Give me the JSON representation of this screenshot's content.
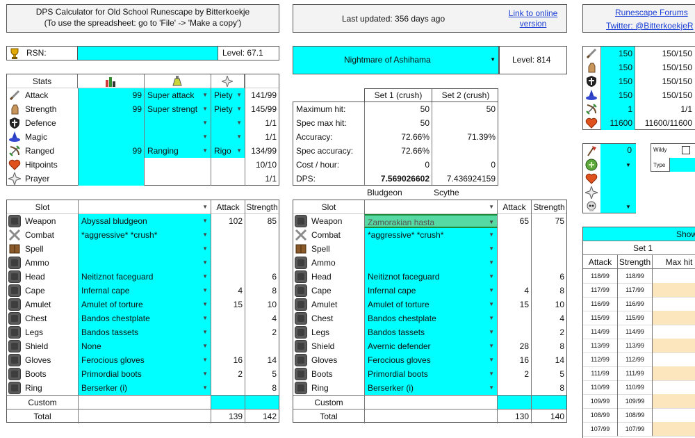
{
  "header": {
    "title_line1": "DPS Calculator for Old School Runescape by Bitterkoekje",
    "title_line2": "(To use the spreadsheet: go to 'File' -> 'Make a copy')",
    "last_updated": "Last updated: 356 days ago",
    "link_online": "Link to online version",
    "forums": "Runescape Forums",
    "twitter": "Twitter: @BitterkoekjeR"
  },
  "rsn": {
    "label": "RSN:",
    "value": "",
    "level": "Level: 67.1"
  },
  "monster": {
    "name": "Nightmare of Ashihama",
    "level": "Level: 814"
  },
  "stats": {
    "header": "Stats",
    "rows": [
      {
        "name": "Attack",
        "value": "99",
        "boost": "Super attack",
        "prayer": "Piety",
        "result": "141/99",
        "icon": "attack-icon"
      },
      {
        "name": "Strength",
        "value": "99",
        "boost": "Super strengt",
        "prayer": "Piety",
        "result": "145/99",
        "icon": "strength-icon"
      },
      {
        "name": "Defence",
        "value": "",
        "boost": "",
        "prayer": "",
        "result": "1/1",
        "icon": "defence-icon"
      },
      {
        "name": "Magic",
        "value": "",
        "boost": "",
        "prayer": "",
        "result": "1/1",
        "icon": "magic-icon"
      },
      {
        "name": "Ranged",
        "value": "99",
        "boost": "Ranging",
        "prayer": "Rigo",
        "result": "134/99",
        "icon": "ranged-icon"
      },
      {
        "name": "Hitpoints",
        "value": "",
        "boost": "",
        "prayer": "",
        "result": "10/10",
        "icon": "hitpoints-icon"
      },
      {
        "name": "Prayer",
        "value": "",
        "boost": "",
        "prayer": "",
        "result": "1/1",
        "icon": "prayer-icon"
      }
    ]
  },
  "results": {
    "set1_header": "Set 1 (crush)",
    "set2_header": "Set 2 (crush)",
    "rows": [
      {
        "label": "Maximum hit:",
        "s1": "50",
        "s2": "50"
      },
      {
        "label": "Spec max hit:",
        "s1": "50",
        "s2": ""
      },
      {
        "label": "Accuracy:",
        "s1": "72.66%",
        "s2": "71.39%"
      },
      {
        "label": "Spec accuracy:",
        "s1": "72.66%",
        "s2": ""
      },
      {
        "label": "Cost / hour:",
        "s1": "0",
        "s2": "0"
      },
      {
        "label": "DPS:",
        "s1": "7.569026602",
        "s2": "7.436924159"
      }
    ],
    "name1": "Bludgeon",
    "name2": "Scythe"
  },
  "set1": {
    "slot_header": "Slot",
    "attack_header": "Attack",
    "strength_header": "Strength",
    "rows": [
      {
        "slot": "Weapon",
        "item": "Abyssal bludgeon",
        "atk": "102",
        "str": "85"
      },
      {
        "slot": "Combat",
        "item": "*aggressive* *crush*",
        "atk": "",
        "str": ""
      },
      {
        "slot": "Spell",
        "item": "",
        "atk": "",
        "str": ""
      },
      {
        "slot": "Ammo",
        "item": "",
        "atk": "",
        "str": ""
      },
      {
        "slot": "Head",
        "item": "Neitiznot faceguard",
        "atk": "",
        "str": "6"
      },
      {
        "slot": "Cape",
        "item": "Infernal cape",
        "atk": "4",
        "str": "8"
      },
      {
        "slot": "Amulet",
        "item": "Amulet of torture",
        "atk": "15",
        "str": "10"
      },
      {
        "slot": "Chest",
        "item": "Bandos chestplate",
        "atk": "",
        "str": "4"
      },
      {
        "slot": "Legs",
        "item": "Bandos tassets",
        "atk": "",
        "str": "2"
      },
      {
        "slot": "Shield",
        "item": "None",
        "atk": "",
        "str": ""
      },
      {
        "slot": "Gloves",
        "item": "Ferocious gloves",
        "atk": "16",
        "str": "14"
      },
      {
        "slot": "Boots",
        "item": "Primordial boots",
        "atk": "2",
        "str": "5"
      },
      {
        "slot": "Ring",
        "item": "Berserker (i)",
        "atk": "",
        "str": "8"
      }
    ],
    "custom": "Custom",
    "total": "Total",
    "total_atk": "139",
    "total_str": "142"
  },
  "set2": {
    "slot_header": "Slot",
    "attack_header": "Attack",
    "strength_header": "Strength",
    "rows": [
      {
        "slot": "Weapon",
        "item": "Zamorakian hasta",
        "atk": "65",
        "str": "75"
      },
      {
        "slot": "Combat",
        "item": "*aggressive* *crush*",
        "atk": "",
        "str": ""
      },
      {
        "slot": "Spell",
        "item": "",
        "atk": "",
        "str": ""
      },
      {
        "slot": "Ammo",
        "item": "",
        "atk": "",
        "str": ""
      },
      {
        "slot": "Head",
        "item": "Neitiznot faceguard",
        "atk": "",
        "str": "6"
      },
      {
        "slot": "Cape",
        "item": "Infernal cape",
        "atk": "4",
        "str": "8"
      },
      {
        "slot": "Amulet",
        "item": "Amulet of torture",
        "atk": "15",
        "str": "10"
      },
      {
        "slot": "Chest",
        "item": "Bandos chestplate",
        "atk": "",
        "str": "4"
      },
      {
        "slot": "Legs",
        "item": "Bandos tassets",
        "atk": "",
        "str": "2"
      },
      {
        "slot": "Shield",
        "item": "Avernic defender",
        "atk": "28",
        "str": "8"
      },
      {
        "slot": "Gloves",
        "item": "Ferocious gloves",
        "atk": "16",
        "str": "14"
      },
      {
        "slot": "Boots",
        "item": "Primordial boots",
        "atk": "2",
        "str": "5"
      },
      {
        "slot": "Ring",
        "item": "Berserker (i)",
        "atk": "",
        "str": "8"
      }
    ],
    "custom": "Custom",
    "total": "Total",
    "total_atk": "130",
    "total_str": "140"
  },
  "right_stats": {
    "rows": [
      {
        "value": "150",
        "current": "150/150"
      },
      {
        "value": "150",
        "current": "150/150"
      },
      {
        "value": "150",
        "current": "150/150"
      },
      {
        "value": "150",
        "current": "150/150"
      },
      {
        "value": "1",
        "current": "1/1"
      },
      {
        "value": "11600",
        "current": "11600/11600"
      }
    ]
  },
  "misc": {
    "value": "0",
    "wildy": "Wildy",
    "type": "Type"
  },
  "show_table": {
    "title": "Show",
    "set_header": "Set 1",
    "col_attack": "Attack",
    "col_strength": "Strength",
    "col_maxhit": "Max hit",
    "rows": [
      {
        "a": "118/99",
        "s": "118/99"
      },
      {
        "a": "117/99",
        "s": "117/99"
      },
      {
        "a": "116/99",
        "s": "116/99"
      },
      {
        "a": "115/99",
        "s": "115/99"
      },
      {
        "a": "114/99",
        "s": "114/99"
      },
      {
        "a": "113/99",
        "s": "113/99"
      },
      {
        "a": "112/99",
        "s": "112/99"
      },
      {
        "a": "111/99",
        "s": "111/99"
      },
      {
        "a": "110/99",
        "s": "110/99"
      },
      {
        "a": "109/99",
        "s": "109/99"
      },
      {
        "a": "108/99",
        "s": "108/99"
      },
      {
        "a": "107/99",
        "s": "107/99"
      }
    ]
  },
  "colors": {
    "cyan": "#00ffff",
    "green_select": "#57d9a3",
    "link": "#1a3fd6",
    "tan": "#fbe6bd"
  }
}
